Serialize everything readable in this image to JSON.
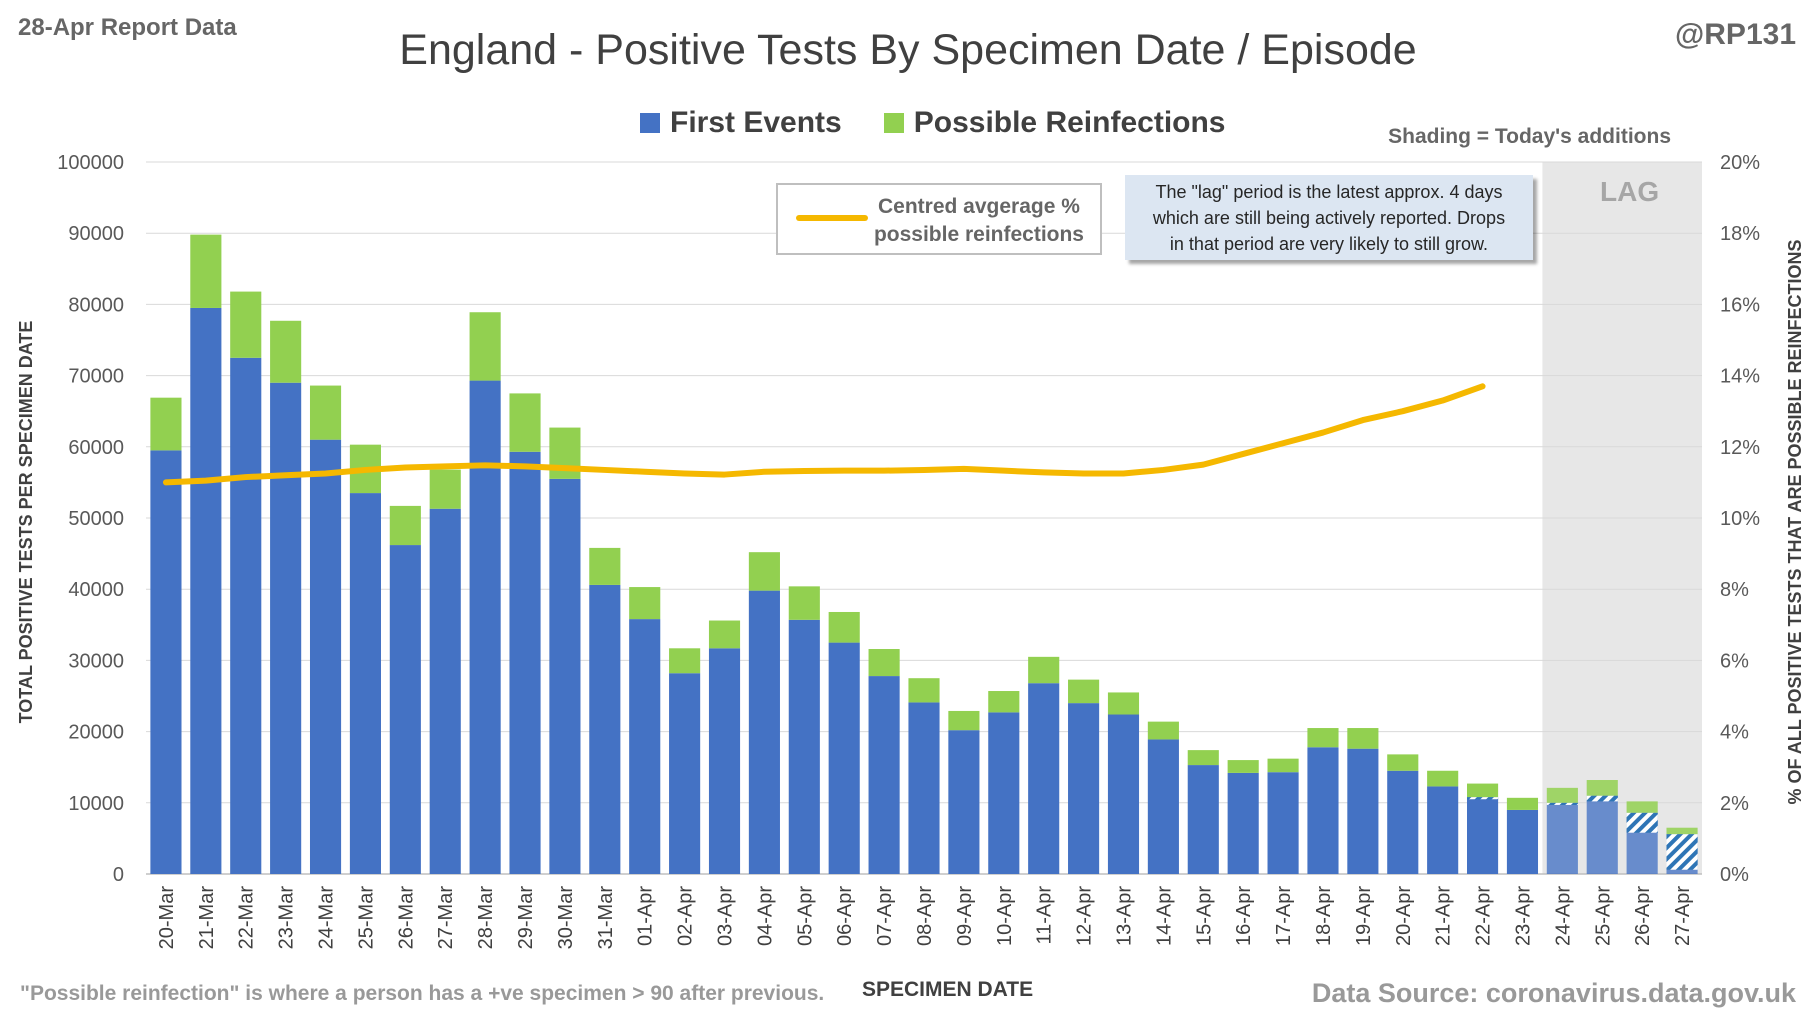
{
  "header": {
    "report_label": "28-Apr Report Data",
    "handle": "@RP131",
    "title": "England - Positive Tests By Specimen Date / Episode"
  },
  "legend": {
    "first_events": "First Events",
    "reinfections": "Possible Reinfections",
    "shading_note": "Shading = Today's additions"
  },
  "avg_legend": {
    "line1": "Centred avgerage %",
    "line2": "possible reinfections"
  },
  "lag_note": {
    "line1": "The \"lag\" period is the latest approx. 4 days",
    "line2": "which are still being actively reported.  Drops",
    "line3": "in that period are very likely to still grow.",
    "lag_label": "LAG"
  },
  "footer": {
    "note": "\"Possible reinfection\" is where a person has a +ve specimen > 90 after previous.",
    "source": "Data Source: coronavirus.data.gov.uk"
  },
  "colors": {
    "first_events": "#4472c4",
    "reinfections": "#92d050",
    "average_line": "#f5b800",
    "lag_shade": "#e7e7e7",
    "note_bg": "#dce6f2"
  },
  "chart_data": {
    "type": "bar",
    "stacked": true,
    "xlabel": "SPECIMEN DATE",
    "ylabel": "TOTAL POSITIVE TESTS PER SPECIMEN DATE",
    "y2label": "% OF ALL POSITIVE TESTS THAT ARE POSSIBLE REINFECTIONS",
    "ylim": [
      0,
      100000
    ],
    "y_ticks": [
      0,
      10000,
      20000,
      30000,
      40000,
      50000,
      60000,
      70000,
      80000,
      90000,
      100000
    ],
    "y2lim": [
      0,
      20
    ],
    "y2_ticks": [
      "0%",
      "2%",
      "4%",
      "6%",
      "8%",
      "10%",
      "12%",
      "14%",
      "16%",
      "18%",
      "20%"
    ],
    "categories": [
      "20-Mar",
      "21-Mar",
      "22-Mar",
      "23-Mar",
      "24-Mar",
      "25-Mar",
      "26-Mar",
      "27-Mar",
      "28-Mar",
      "29-Mar",
      "30-Mar",
      "31-Mar",
      "01-Apr",
      "02-Apr",
      "03-Apr",
      "04-Apr",
      "05-Apr",
      "06-Apr",
      "07-Apr",
      "08-Apr",
      "09-Apr",
      "10-Apr",
      "11-Apr",
      "12-Apr",
      "13-Apr",
      "14-Apr",
      "15-Apr",
      "16-Apr",
      "17-Apr",
      "18-Apr",
      "19-Apr",
      "20-Apr",
      "21-Apr",
      "22-Apr",
      "23-Apr",
      "24-Apr",
      "25-Apr",
      "26-Apr",
      "27-Apr"
    ],
    "series": [
      {
        "name": "First Events",
        "values": [
          59500,
          79500,
          72500,
          69000,
          61000,
          53500,
          46200,
          51300,
          69300,
          59300,
          55500,
          40600,
          35800,
          28200,
          31700,
          39800,
          35700,
          32500,
          27800,
          24100,
          20200,
          22700,
          26800,
          24000,
          22400,
          18900,
          15300,
          14200,
          14300,
          17800,
          17600,
          14500,
          12300,
          10800,
          9000,
          10000,
          11000,
          8600,
          5600
        ]
      },
      {
        "name": "Possible Reinfections",
        "values": [
          7400,
          10300,
          9300,
          8700,
          7600,
          6800,
          5500,
          5500,
          9600,
          8200,
          7200,
          5200,
          4500,
          3500,
          3900,
          5400,
          4700,
          4300,
          3800,
          3400,
          2700,
          3000,
          3700,
          3300,
          3100,
          2500,
          2100,
          1800,
          1900,
          2700,
          2900,
          2300,
          2200,
          1900,
          1700,
          2100,
          2200,
          1600,
          900
        ]
      }
    ],
    "todays_additions_first_events": [
      0,
      0,
      0,
      0,
      0,
      0,
      0,
      0,
      0,
      0,
      0,
      0,
      0,
      0,
      0,
      0,
      0,
      0,
      0,
      0,
      0,
      0,
      0,
      0,
      0,
      0,
      0,
      0,
      0,
      0,
      0,
      0,
      0,
      300,
      0,
      300,
      800,
      2800,
      5000
    ],
    "lag_period": [
      "24-Apr",
      "25-Apr",
      "26-Apr",
      "27-Apr"
    ],
    "average_line": {
      "name": "Centred avgerage % possible reinfections",
      "categories": [
        "20-Mar",
        "21-Mar",
        "22-Mar",
        "23-Mar",
        "24-Mar",
        "25-Mar",
        "26-Mar",
        "27-Mar",
        "28-Mar",
        "29-Mar",
        "30-Mar",
        "31-Mar",
        "01-Apr",
        "02-Apr",
        "03-Apr",
        "04-Apr",
        "05-Apr",
        "06-Apr",
        "07-Apr",
        "08-Apr",
        "09-Apr",
        "10-Apr",
        "11-Apr",
        "12-Apr",
        "13-Apr",
        "14-Apr",
        "15-Apr",
        "16-Apr",
        "17-Apr",
        "18-Apr",
        "19-Apr",
        "20-Apr",
        "21-Apr",
        "22-Apr"
      ],
      "values": [
        11.0,
        11.05,
        11.15,
        11.2,
        11.25,
        11.35,
        11.42,
        11.45,
        11.48,
        11.45,
        11.4,
        11.35,
        11.3,
        11.25,
        11.22,
        11.3,
        11.32,
        11.33,
        11.33,
        11.35,
        11.38,
        11.33,
        11.28,
        11.25,
        11.25,
        11.35,
        11.5,
        11.8,
        12.1,
        12.4,
        12.75,
        13.0,
        13.3,
        13.7
      ]
    }
  }
}
